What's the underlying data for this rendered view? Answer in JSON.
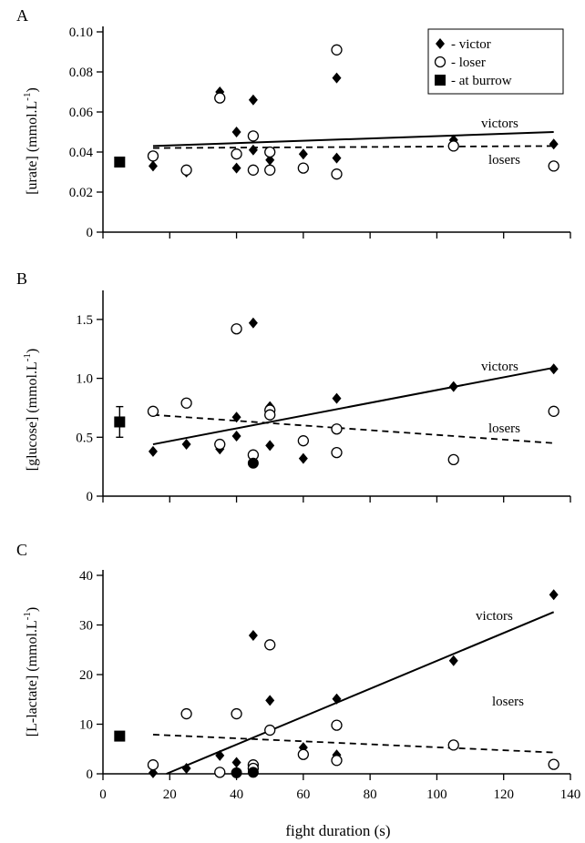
{
  "chart_data": [
    {
      "type": "scatter",
      "panel_label": "A",
      "ylabel": "[urate] (mmol.L",
      "ylabel_sup": "-1",
      "ylabel_tail": ")",
      "xlim": [
        0,
        140
      ],
      "ylim": [
        0,
        0.1
      ],
      "yticks": [
        0,
        0.02,
        0.04,
        0.06,
        0.08,
        0.1
      ],
      "ytick_labels": [
        "0",
        "0.02",
        "0.04",
        "0.06",
        "0.08",
        "0.10"
      ],
      "xticks": [
        0,
        20,
        40,
        60,
        80,
        100,
        120,
        140
      ],
      "xtick_labels": [],
      "series": [
        {
          "name": "victor",
          "marker": "diamond",
          "x": [
            15,
            25,
            35,
            40,
            40,
            45,
            45,
            50,
            60,
            70,
            70,
            105,
            135
          ],
          "y": [
            0.033,
            0.03,
            0.07,
            0.032,
            0.05,
            0.066,
            0.041,
            0.036,
            0.039,
            0.077,
            0.037,
            0.046,
            0.044
          ]
        },
        {
          "name": "loser",
          "marker": "open-circle",
          "x": [
            15,
            25,
            35,
            40,
            45,
            45,
            50,
            50,
            60,
            70,
            70,
            105,
            135
          ],
          "y": [
            0.038,
            0.031,
            0.067,
            0.039,
            0.048,
            0.031,
            0.04,
            0.031,
            0.032,
            0.091,
            0.029,
            0.043,
            0.033
          ]
        },
        {
          "name": "at burrow",
          "marker": "filled-square",
          "x": [
            5
          ],
          "y": [
            0.035
          ]
        }
      ],
      "fits": [
        {
          "label": "victors",
          "style": "solid",
          "x": [
            15,
            135
          ],
          "y": [
            0.043,
            0.05
          ]
        },
        {
          "label": "losers",
          "style": "dashed",
          "x": [
            15,
            135
          ],
          "y": [
            0.042,
            0.043
          ]
        }
      ],
      "legend": {
        "position": "top-right",
        "entries": [
          {
            "marker": "diamond",
            "text": "- victor"
          },
          {
            "marker": "open-circle",
            "text": "- loser"
          },
          {
            "marker": "filled-square",
            "text": "- at burrow"
          }
        ]
      }
    },
    {
      "type": "scatter",
      "panel_label": "B",
      "ylabel": "[glucose] (mmol.L",
      "ylabel_sup": "-1",
      "ylabel_tail": ")",
      "xlim": [
        0,
        140
      ],
      "ylim": [
        0,
        1.7
      ],
      "yticks": [
        0,
        0.5,
        1.0,
        1.5
      ],
      "ytick_labels": [
        "0",
        "0.5",
        "1.0",
        "1.5"
      ],
      "xticks": [
        0,
        20,
        40,
        60,
        80,
        100,
        120,
        140
      ],
      "xtick_labels": [],
      "series": [
        {
          "name": "victor",
          "marker": "diamond",
          "x": [
            15,
            25,
            35,
            40,
            40,
            45,
            50,
            50,
            60,
            70,
            105,
            135
          ],
          "y": [
            0.38,
            0.44,
            0.4,
            0.51,
            0.67,
            1.47,
            0.43,
            0.76,
            0.32,
            0.83,
            0.93,
            1.08
          ]
        },
        {
          "name": "loser",
          "marker": "open-circle",
          "x": [
            15,
            25,
            35,
            40,
            45,
            50,
            50,
            60,
            70,
            70,
            105,
            135
          ],
          "y": [
            0.72,
            0.79,
            0.44,
            1.42,
            0.35,
            0.73,
            0.69,
            0.47,
            0.57,
            0.37,
            0.31,
            0.72
          ]
        },
        {
          "name": "at burrow",
          "marker": "filled-square",
          "x": [
            5
          ],
          "y": [
            0.63
          ],
          "error": [
            0.13
          ]
        },
        {
          "name": "filled circle",
          "marker": "filled-circle",
          "x": [
            45
          ],
          "y": [
            0.28
          ]
        }
      ],
      "fits": [
        {
          "label": "victors",
          "style": "solid",
          "x": [
            15,
            135
          ],
          "y": [
            0.44,
            1.09
          ]
        },
        {
          "label": "losers",
          "style": "dashed",
          "x": [
            15,
            135
          ],
          "y": [
            0.69,
            0.45
          ]
        }
      ]
    },
    {
      "type": "scatter",
      "panel_label": "C",
      "ylabel": "[L-lactate] (mmol.L",
      "ylabel_sup": "-1",
      "ylabel_tail": ")",
      "xlabel": "fight duration (s)",
      "xlim": [
        0,
        140
      ],
      "ylim": [
        0,
        40
      ],
      "yticks": [
        0,
        10,
        20,
        30,
        40
      ],
      "ytick_labels": [
        "0",
        "10",
        "20",
        "30",
        "40"
      ],
      "xticks": [
        0,
        20,
        40,
        60,
        80,
        100,
        120,
        140
      ],
      "xtick_labels": [
        "0",
        "20",
        "40",
        "60",
        "80",
        "100",
        "120",
        "140"
      ],
      "series": [
        {
          "name": "victor",
          "marker": "diamond",
          "x": [
            15,
            25,
            35,
            40,
            40,
            45,
            45,
            50,
            60,
            70,
            70,
            105,
            135
          ],
          "y": [
            0.2,
            1.1,
            3.7,
            2.3,
            0.3,
            27.9,
            0.9,
            14.8,
            5.3,
            15.1,
            3.8,
            22.8,
            36.1
          ]
        },
        {
          "name": "loser",
          "marker": "open-circle",
          "x": [
            15,
            25,
            35,
            40,
            45,
            45,
            50,
            50,
            60,
            70,
            70,
            105,
            135
          ],
          "y": [
            1.8,
            12.1,
            0.3,
            12.1,
            1.8,
            1.1,
            26.0,
            8.8,
            3.9,
            9.8,
            2.7,
            5.8,
            1.9
          ]
        },
        {
          "name": "at burrow",
          "marker": "filled-square",
          "x": [
            5
          ],
          "y": [
            7.6
          ]
        },
        {
          "name": "filled circle",
          "marker": "filled-circle",
          "x": [
            40,
            45
          ],
          "y": [
            0.2,
            0.3
          ]
        }
      ],
      "fits": [
        {
          "label": "victors",
          "style": "solid",
          "x": [
            19,
            135
          ],
          "y": [
            0,
            32.6
          ]
        },
        {
          "label": "losers",
          "style": "dashed",
          "x": [
            15,
            135
          ],
          "y": [
            7.9,
            4.3
          ]
        }
      ]
    }
  ]
}
